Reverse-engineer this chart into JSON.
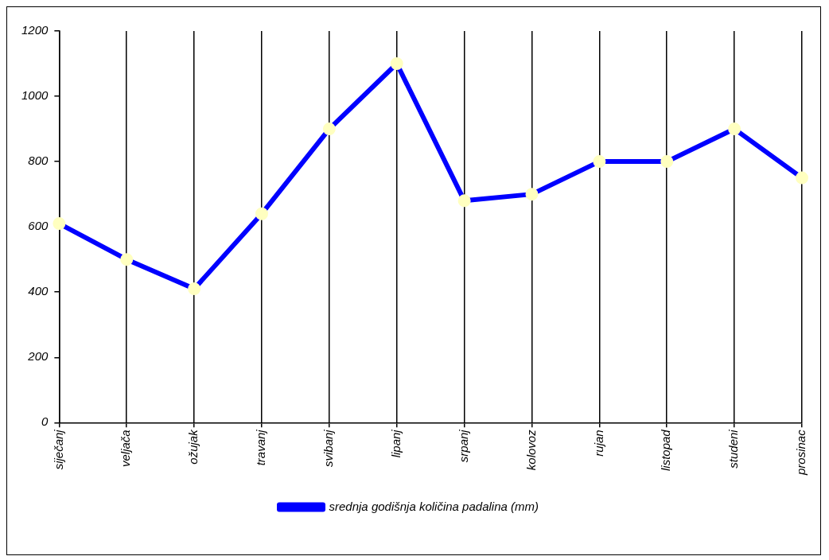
{
  "chart_data": {
    "type": "line",
    "categories": [
      "siječanj",
      "veljača",
      "ožujak",
      "travanj",
      "svibanj",
      "lipanj",
      "srpanj",
      "kolovoz",
      "rujan",
      "listopad",
      "studeni",
      "prosinac"
    ],
    "series": [
      {
        "name": "srednja godišnja količina padalina (mm)",
        "color": "#0000ff",
        "values": [
          610,
          500,
          410,
          640,
          900,
          1100,
          680,
          700,
          800,
          800,
          900,
          750
        ]
      }
    ],
    "ylim": [
      0,
      1200
    ],
    "yticks": [
      0,
      200,
      400,
      600,
      800,
      1000,
      1200
    ],
    "grid": "x",
    "legend": "bottom",
    "marker": "circle",
    "line_style": "solid"
  }
}
